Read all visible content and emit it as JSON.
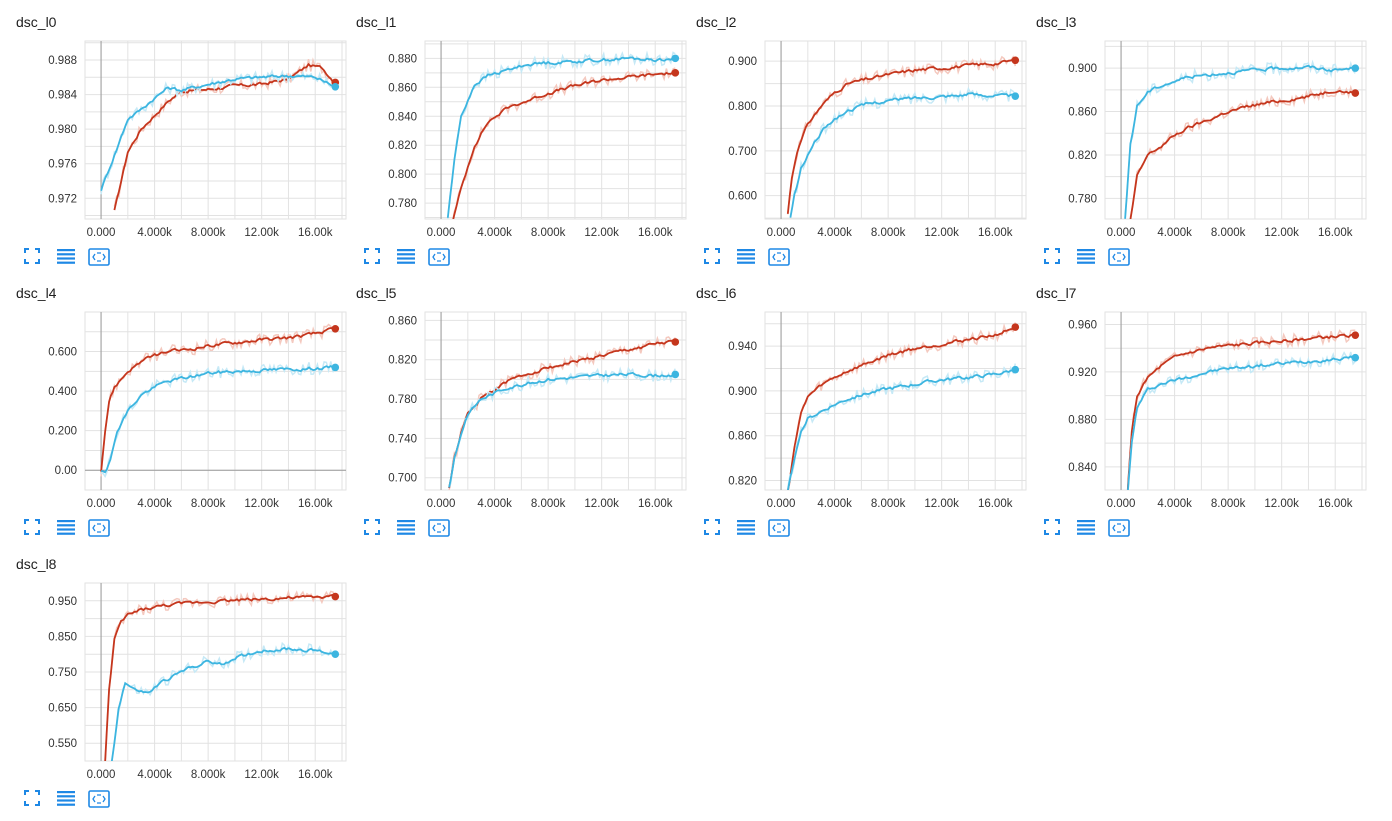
{
  "colors": {
    "red": "#c5361d",
    "blue": "#3cb5e0",
    "red_light": "#f4c9bf",
    "blue_light": "#c6e9f6",
    "axis": "#999999",
    "grid": "#e2e2e2",
    "icon": "#1e88e5"
  },
  "toolbar": {
    "icons": [
      "fullscreen-icon",
      "list-icon",
      "fit-domain-icon"
    ]
  },
  "chart_data": [
    {
      "type": "line",
      "title": "dsc_l0",
      "xlim": [
        -1200,
        18300
      ],
      "ylim": [
        0.9696,
        0.9902
      ],
      "xticks": [
        0,
        4000,
        8000,
        12000,
        16000
      ],
      "xtick_labels": [
        "0.000",
        "4.000k",
        "8.000k",
        "12.00k",
        "16.00k"
      ],
      "yticks": [
        0.972,
        0.976,
        0.98,
        0.984,
        0.988
      ],
      "ytick_labels": [
        "0.972",
        "0.976",
        "0.980",
        "0.984",
        "0.988"
      ],
      "series": [
        {
          "color": "#c5361d",
          "x": [
            1000,
            2000,
            3000,
            4000,
            5000,
            6000,
            8000,
            10000,
            12000,
            14000,
            15500,
            16500,
            17500
          ],
          "y": [
            0.9705,
            0.9774,
            0.98,
            0.9816,
            0.9832,
            0.9844,
            0.9846,
            0.985,
            0.9852,
            0.9858,
            0.9874,
            0.9871,
            0.9854
          ]
        },
        {
          "color": "#3cb5e0",
          "x": [
            0,
            1000,
            2000,
            3000,
            4000,
            5000,
            6000,
            8000,
            10000,
            12000,
            14000,
            16000,
            17500
          ],
          "y": [
            0.973,
            0.977,
            0.9812,
            0.9823,
            0.9836,
            0.9848,
            0.9845,
            0.9852,
            0.9858,
            0.986,
            0.9862,
            0.986,
            0.9849
          ]
        }
      ]
    },
    {
      "type": "line",
      "title": "dsc_l1",
      "xlim": [
        -1200,
        18300
      ],
      "ylim": [
        0.769,
        0.892
      ],
      "xticks": [
        0,
        4000,
        8000,
        12000,
        16000
      ],
      "xtick_labels": [
        "0.000",
        "4.000k",
        "8.000k",
        "12.00k",
        "16.00k"
      ],
      "yticks": [
        0.78,
        0.8,
        0.82,
        0.84,
        0.86,
        0.88
      ],
      "ytick_labels": [
        "0.780",
        "0.800",
        "0.820",
        "0.840",
        "0.860",
        "0.880"
      ],
      "series": [
        {
          "color": "#c5361d",
          "x": [
            800,
            1500,
            2500,
            3500,
            5000,
            6500,
            8000,
            10000,
            12000,
            14000,
            16000,
            17500
          ],
          "y": [
            0.765,
            0.79,
            0.82,
            0.836,
            0.846,
            0.851,
            0.856,
            0.861,
            0.865,
            0.867,
            0.869,
            0.87
          ]
        },
        {
          "color": "#3cb5e0",
          "x": [
            500,
            1000,
            1500,
            2500,
            3500,
            5000,
            6500,
            8000,
            10000,
            12000,
            14000,
            16000,
            17500
          ],
          "y": [
            0.77,
            0.81,
            0.84,
            0.862,
            0.868,
            0.872,
            0.876,
            0.877,
            0.878,
            0.879,
            0.88,
            0.879,
            0.88
          ]
        }
      ]
    },
    {
      "type": "line",
      "title": "dsc_l2",
      "xlim": [
        -1200,
        18300
      ],
      "ylim": [
        0.548,
        0.945
      ],
      "xticks": [
        0,
        4000,
        8000,
        12000,
        16000
      ],
      "xtick_labels": [
        "0.000",
        "4.000k",
        "8.000k",
        "12.00k",
        "16.00k"
      ],
      "yticks": [
        0.6,
        0.7,
        0.8,
        0.9
      ],
      "ytick_labels": [
        "0.600",
        "0.700",
        "0.800",
        "0.900"
      ],
      "series": [
        {
          "color": "#c5361d",
          "x": [
            500,
            800,
            1200,
            2000,
            3000,
            4000,
            5000,
            6500,
            8000,
            10000,
            12000,
            14000,
            16000,
            17500
          ],
          "y": [
            0.56,
            0.64,
            0.7,
            0.76,
            0.8,
            0.83,
            0.85,
            0.86,
            0.87,
            0.88,
            0.885,
            0.89,
            0.895,
            0.902
          ]
        },
        {
          "color": "#3cb5e0",
          "x": [
            700,
            1000,
            1500,
            2500,
            3500,
            5000,
            6500,
            8000,
            10000,
            12000,
            14000,
            16000,
            17500
          ],
          "y": [
            0.55,
            0.6,
            0.66,
            0.72,
            0.76,
            0.79,
            0.805,
            0.812,
            0.818,
            0.822,
            0.826,
            0.824,
            0.822
          ]
        }
      ]
    },
    {
      "type": "line",
      "title": "dsc_l3",
      "xlim": [
        -1200,
        18300
      ],
      "ylim": [
        0.761,
        0.925
      ],
      "xticks": [
        0,
        4000,
        8000,
        12000,
        16000
      ],
      "xtick_labels": [
        "0.000",
        "4.000k",
        "8.000k",
        "12.00k",
        "16.00k"
      ],
      "yticks": [
        0.78,
        0.82,
        0.86,
        0.9
      ],
      "ytick_labels": [
        "0.780",
        "0.820",
        "0.860",
        "0.900"
      ],
      "series": [
        {
          "color": "#c5361d",
          "x": [
            700,
            1200,
            2000,
            3000,
            4000,
            5000,
            6500,
            8000,
            10000,
            12000,
            14000,
            16000,
            17500
          ],
          "y": [
            0.76,
            0.8,
            0.82,
            0.828,
            0.838,
            0.845,
            0.852,
            0.86,
            0.866,
            0.87,
            0.874,
            0.88,
            0.877
          ]
        },
        {
          "color": "#3cb5e0",
          "x": [
            300,
            700,
            1200,
            2000,
            3000,
            4000,
            5000,
            6500,
            8000,
            10000,
            12000,
            14000,
            16000,
            17500
          ],
          "y": [
            0.76,
            0.83,
            0.865,
            0.878,
            0.884,
            0.888,
            0.892,
            0.894,
            0.896,
            0.898,
            0.9,
            0.901,
            0.898,
            0.9
          ]
        }
      ]
    },
    {
      "type": "line",
      "title": "dsc_l4",
      "xlim": [
        -1200,
        18300
      ],
      "ylim": [
        -0.1,
        0.8
      ],
      "xticks": [
        0,
        4000,
        8000,
        12000,
        16000
      ],
      "xtick_labels": [
        "0.000",
        "4.000k",
        "8.000k",
        "12.00k",
        "16.00k"
      ],
      "yticks": [
        0.0,
        0.2,
        0.4,
        0.6
      ],
      "ytick_labels": [
        "0.00",
        "0.200",
        "0.400",
        "0.600"
      ],
      "series": [
        {
          "color": "#c5361d",
          "x": [
            0,
            300,
            600,
            1000,
            2000,
            3000,
            4000,
            5000,
            6500,
            8000,
            10000,
            12000,
            14000,
            16000,
            17500
          ],
          "y": [
            0.0,
            0.2,
            0.35,
            0.42,
            0.5,
            0.55,
            0.58,
            0.6,
            0.61,
            0.63,
            0.645,
            0.66,
            0.67,
            0.69,
            0.715
          ]
        },
        {
          "color": "#3cb5e0",
          "x": [
            0,
            300,
            700,
            1200,
            2000,
            3000,
            4000,
            5000,
            6500,
            8000,
            10000,
            12000,
            14000,
            16000,
            17500
          ],
          "y": [
            0.0,
            0.0,
            0.05,
            0.2,
            0.3,
            0.38,
            0.42,
            0.45,
            0.47,
            0.49,
            0.5,
            0.505,
            0.51,
            0.515,
            0.52
          ]
        }
      ]
    },
    {
      "type": "line",
      "title": "dsc_l5",
      "xlim": [
        -1200,
        18300
      ],
      "ylim": [
        0.6875,
        0.8685
      ],
      "xticks": [
        0,
        4000,
        8000,
        12000,
        16000
      ],
      "xtick_labels": [
        "0.000",
        "4.000k",
        "8.000k",
        "12.00k",
        "16.00k"
      ],
      "yticks": [
        0.7,
        0.74,
        0.78,
        0.82,
        0.86
      ],
      "ytick_labels": [
        "0.700",
        "0.740",
        "0.780",
        "0.820",
        "0.860"
      ],
      "series": [
        {
          "color": "#c5361d",
          "x": [
            600,
            1000,
            1500,
            2000,
            3000,
            4000,
            5000,
            6500,
            8000,
            10000,
            12000,
            14000,
            16000,
            17500
          ],
          "y": [
            0.69,
            0.72,
            0.745,
            0.765,
            0.78,
            0.79,
            0.798,
            0.806,
            0.812,
            0.818,
            0.824,
            0.83,
            0.836,
            0.838
          ]
        },
        {
          "color": "#3cb5e0",
          "x": [
            600,
            1000,
            1500,
            2000,
            3000,
            4000,
            5000,
            6500,
            8000,
            10000,
            12000,
            14000,
            16000,
            17500
          ],
          "y": [
            0.69,
            0.72,
            0.745,
            0.765,
            0.78,
            0.786,
            0.792,
            0.796,
            0.8,
            0.802,
            0.804,
            0.805,
            0.804,
            0.805
          ]
        }
      ]
    },
    {
      "type": "line",
      "title": "dsc_l6",
      "xlim": [
        -1200,
        18300
      ],
      "ylim": [
        0.8115,
        0.9705
      ],
      "xticks": [
        0,
        4000,
        8000,
        12000,
        16000
      ],
      "xtick_labels": [
        "0.000",
        "4.000k",
        "8.000k",
        "12.00k",
        "16.00k"
      ],
      "yticks": [
        0.82,
        0.86,
        0.9,
        0.94
      ],
      "ytick_labels": [
        "0.820",
        "0.860",
        "0.900",
        "0.940"
      ],
      "series": [
        {
          "color": "#c5361d",
          "x": [
            500,
            1000,
            1500,
            2000,
            3000,
            4000,
            5000,
            6500,
            8000,
            10000,
            12000,
            14000,
            16000,
            17500
          ],
          "y": [
            0.81,
            0.85,
            0.88,
            0.895,
            0.905,
            0.912,
            0.918,
            0.925,
            0.932,
            0.938,
            0.942,
            0.946,
            0.95,
            0.957
          ]
        },
        {
          "color": "#3cb5e0",
          "x": [
            500,
            1000,
            1500,
            2000,
            3000,
            4000,
            5000,
            6500,
            8000,
            10000,
            12000,
            14000,
            16000,
            17500
          ],
          "y": [
            0.81,
            0.84,
            0.862,
            0.875,
            0.882,
            0.888,
            0.893,
            0.898,
            0.902,
            0.906,
            0.91,
            0.912,
            0.915,
            0.919
          ]
        }
      ]
    },
    {
      "type": "line",
      "title": "dsc_l7",
      "xlim": [
        -1200,
        18300
      ],
      "ylim": [
        0.8205,
        0.9705
      ],
      "xticks": [
        0,
        4000,
        8000,
        12000,
        16000
      ],
      "xtick_labels": [
        "0.000",
        "4.000k",
        "8.000k",
        "12.00k",
        "16.00k"
      ],
      "yticks": [
        0.84,
        0.88,
        0.92,
        0.96
      ],
      "ytick_labels": [
        "0.840",
        "0.880",
        "0.920",
        "0.960"
      ],
      "series": [
        {
          "color": "#c5361d",
          "x": [
            500,
            800,
            1200,
            2000,
            3000,
            4000,
            5000,
            6500,
            8000,
            10000,
            12000,
            14000,
            16000,
            17500
          ],
          "y": [
            0.82,
            0.87,
            0.9,
            0.915,
            0.925,
            0.932,
            0.936,
            0.94,
            0.942,
            0.944,
            0.946,
            0.948,
            0.95,
            0.951
          ]
        },
        {
          "color": "#3cb5e0",
          "x": [
            500,
            800,
            1200,
            2000,
            3000,
            4000,
            5000,
            6500,
            8000,
            10000,
            12000,
            14000,
            16000,
            17500
          ],
          "y": [
            0.82,
            0.86,
            0.89,
            0.905,
            0.91,
            0.913,
            0.916,
            0.92,
            0.923,
            0.925,
            0.927,
            0.929,
            0.931,
            0.932
          ]
        }
      ]
    },
    {
      "type": "line",
      "title": "dsc_l8",
      "xlim": [
        -1200,
        18300
      ],
      "ylim": [
        0.5,
        1.0
      ],
      "xticks": [
        0,
        4000,
        8000,
        12000,
        16000
      ],
      "xtick_labels": [
        "0.000",
        "4.000k",
        "8.000k",
        "12.00k",
        "16.00k"
      ],
      "yticks": [
        0.55,
        0.65,
        0.75,
        0.85,
        0.95
      ],
      "ytick_labels": [
        "0.550",
        "0.650",
        "0.750",
        "0.850",
        "0.950"
      ],
      "series": [
        {
          "color": "#c5361d",
          "x": [
            300,
            600,
            1000,
            1500,
            2000,
            3000,
            4000,
            5000,
            6500,
            8000,
            10000,
            12000,
            14000,
            16000,
            17500
          ],
          "y": [
            0.5,
            0.7,
            0.84,
            0.89,
            0.91,
            0.925,
            0.932,
            0.938,
            0.943,
            0.948,
            0.952,
            0.955,
            0.958,
            0.96,
            0.962
          ]
        },
        {
          "color": "#3cb5e0",
          "x": [
            800,
            1000,
            1300,
            1800,
            2500,
            3500,
            4500,
            5500,
            6500,
            8000,
            9000,
            10000,
            11000,
            12000,
            14000,
            16000,
            17500
          ],
          "y": [
            0.5,
            0.55,
            0.65,
            0.72,
            0.7,
            0.69,
            0.72,
            0.74,
            0.76,
            0.78,
            0.77,
            0.79,
            0.8,
            0.81,
            0.815,
            0.81,
            0.8
          ]
        }
      ]
    }
  ]
}
